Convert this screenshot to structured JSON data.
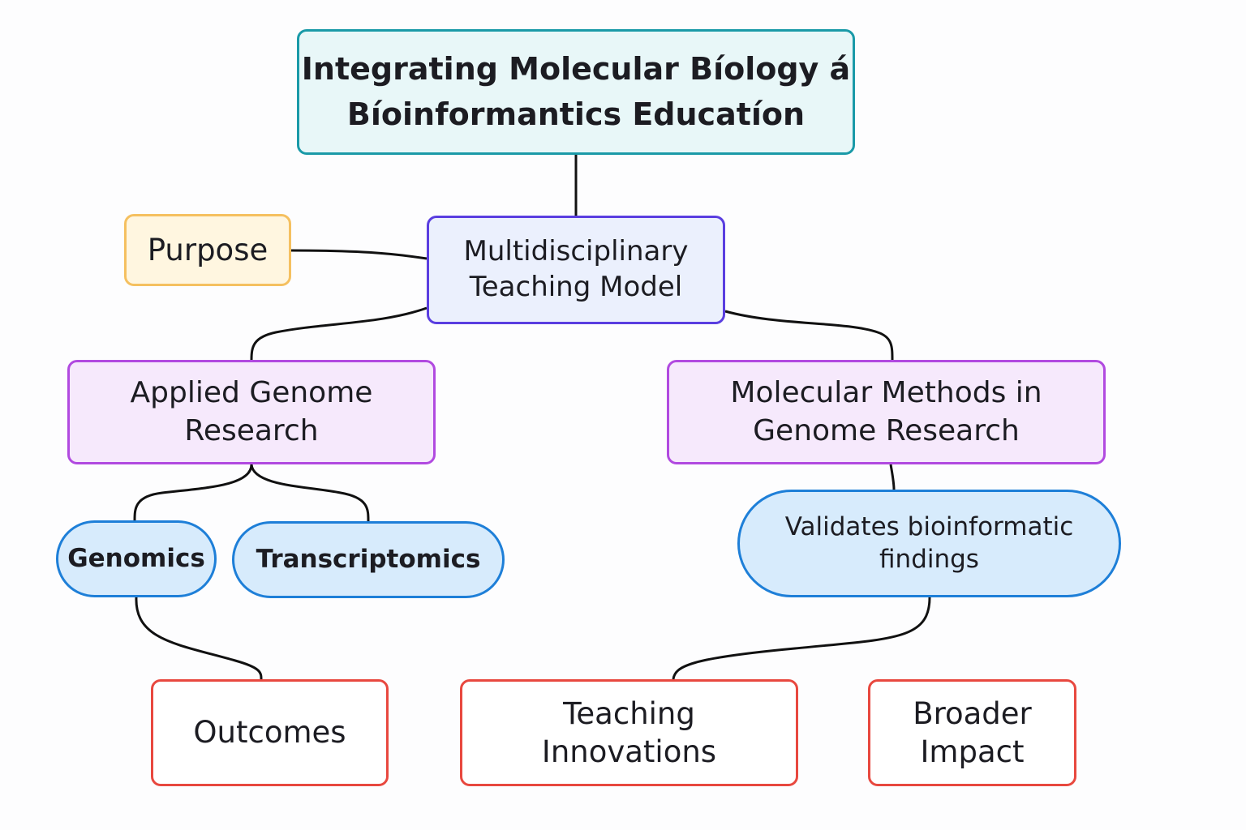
{
  "diagram": {
    "nodes": {
      "title": "Integrating Molecular Bíology á\nBíoinformantics Educatíon",
      "purpose": "Purpose",
      "model": "Multidisciplinary\nTeaching Model",
      "applied": "Applied Genome\nResearch",
      "molecular": "Molecular Methods  in\nGenome Research",
      "genomics": "Genomics",
      "transcriptomics": "Transcriptomics",
      "validates": "Validates bioinformatic\nfindings",
      "outcomes": "Outcomes",
      "teaching": "Teaching\nInnovations",
      "broader": "Broader\nImpact"
    },
    "edges": [
      {
        "from": "title",
        "to": "model"
      },
      {
        "from": "purpose",
        "to": "model"
      },
      {
        "from": "model",
        "to": "applied"
      },
      {
        "from": "model",
        "to": "molecular"
      },
      {
        "from": "applied",
        "to": "genomics"
      },
      {
        "from": "applied",
        "to": "transcriptomics"
      },
      {
        "from": "molecular",
        "to": "validates"
      },
      {
        "from": "genomics",
        "to": "outcomes"
      },
      {
        "from": "validates",
        "to": "teaching"
      }
    ],
    "colors": {
      "root_fill": "#e8f7f8",
      "root_border": "#1a9aa8",
      "purpose_fill": "#fff6e0",
      "purpose_border": "#f5c060",
      "model_fill": "#ebf0fd",
      "model_border": "#5a3ee0",
      "branch_fill": "#f6e9fc",
      "branch_border": "#b14ae0",
      "leaf_fill": "#d7ebfc",
      "leaf_border": "#1e7fd8",
      "result_fill": "#ffffff",
      "result_border": "#e8483f",
      "edge": "#111111"
    }
  }
}
